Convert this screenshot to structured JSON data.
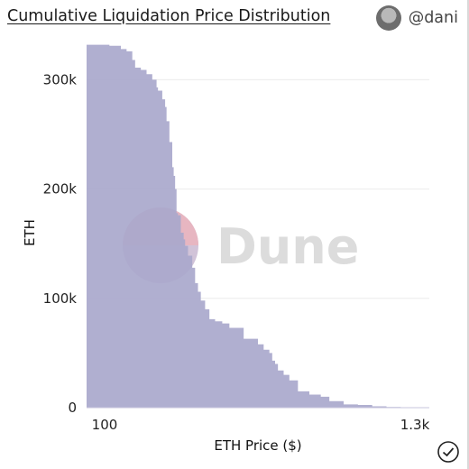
{
  "header": {
    "title": "Cumulative Liquidation Price Distribution",
    "author": "@dani"
  },
  "watermark": {
    "text": "Dune"
  },
  "colors": {
    "area": "#a9a8cc",
    "grid": "#ececec",
    "wm_top": "#e8b5c0",
    "wm_bottom": "#c9b9d1"
  },
  "icons": {
    "avatar": "avatar-icon",
    "verified": "check-circle-icon"
  },
  "chart_data": {
    "type": "area",
    "xlabel": "ETH Price ($)",
    "ylabel": "ETH",
    "xlim": [
      100,
      1300
    ],
    "ylim": [
      0,
      330000
    ],
    "x_ticks": [
      "100",
      "1.3k"
    ],
    "y_ticks": [
      {
        "value": 0,
        "label": "0"
      },
      {
        "value": 100000,
        "label": "100k"
      },
      {
        "value": 200000,
        "label": "200k"
      },
      {
        "value": 300000,
        "label": "300k"
      }
    ],
    "grid": true,
    "x": [
      100,
      140,
      180,
      220,
      240,
      260,
      270,
      290,
      310,
      330,
      345,
      350,
      365,
      375,
      380,
      390,
      400,
      405,
      410,
      415,
      420,
      430,
      440,
      445,
      455,
      470,
      480,
      490,
      500,
      515,
      530,
      550,
      575,
      600,
      650,
      700,
      720,
      740,
      750,
      760,
      770,
      790,
      810,
      840,
      880,
      920,
      950,
      1000,
      1050,
      1100,
      1150,
      1200,
      1250,
      1300
    ],
    "y": [
      332000,
      332000,
      331000,
      328000,
      326000,
      318000,
      311000,
      309000,
      305000,
      300000,
      293000,
      290000,
      282000,
      275000,
      262000,
      243000,
      220000,
      212000,
      200000,
      178000,
      176000,
      160000,
      154000,
      148000,
      139000,
      128000,
      114000,
      106000,
      98000,
      90000,
      81000,
      79000,
      77000,
      73000,
      63000,
      58000,
      53000,
      50000,
      43000,
      40000,
      34000,
      30000,
      25000,
      15000,
      12000,
      10000,
      6000,
      3000,
      2500,
      1200,
      600,
      300,
      150,
      100
    ]
  }
}
